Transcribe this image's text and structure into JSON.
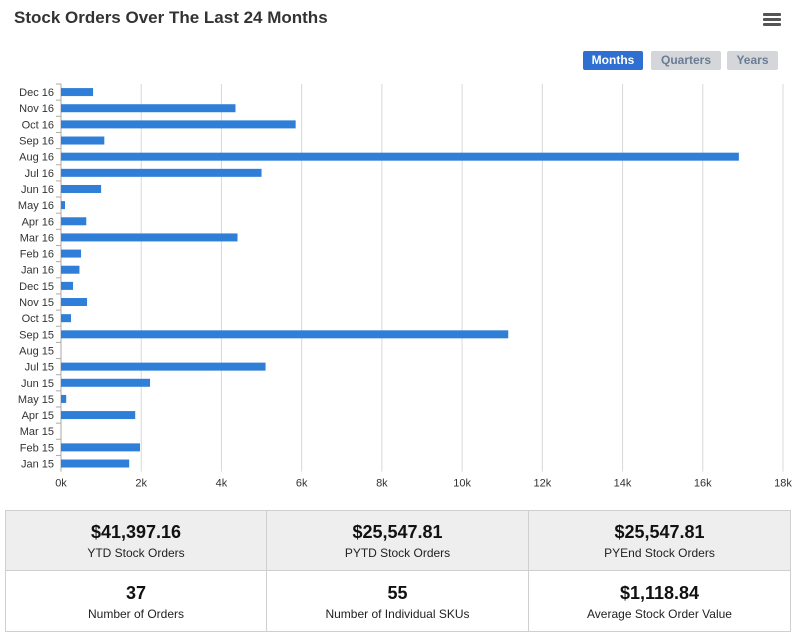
{
  "title": "Stock Orders Over The Last 24 Months",
  "menu_icon": "hamburger-menu-icon",
  "range_buttons": {
    "months": "Months",
    "quarters": "Quarters",
    "years": "Years",
    "active": "Months"
  },
  "colors": {
    "bar": "#2f7ed8",
    "active_button": "#2f6fd0",
    "inactive_button": "#d4d6da",
    "grid": "#d8d8d8"
  },
  "chart_data": {
    "type": "bar",
    "orientation": "horizontal",
    "categories": [
      "Dec 16",
      "Nov 16",
      "Oct 16",
      "Sep 16",
      "Aug 16",
      "Jul 16",
      "Jun 16",
      "May 16",
      "Apr 16",
      "Mar 16",
      "Feb 16",
      "Jan 16",
      "Dec 15",
      "Nov 15",
      "Oct 15",
      "Sep 15",
      "Aug 15",
      "Jul 15",
      "Jun 15",
      "May 15",
      "Apr 15",
      "Mar 15",
      "Feb 15",
      "Jan 15"
    ],
    "values": [
      800,
      4350,
      5850,
      1080,
      16900,
      5000,
      1000,
      100,
      630,
      4400,
      500,
      460,
      300,
      650,
      250,
      11150,
      0,
      5100,
      2220,
      130,
      1850,
      0,
      1970,
      1700
    ],
    "xlim": [
      0,
      18000
    ],
    "ticks": [
      "0k",
      "2k",
      "4k",
      "6k",
      "8k",
      "10k",
      "12k",
      "14k",
      "16k",
      "18k"
    ],
    "tick_values": [
      0,
      2000,
      4000,
      6000,
      8000,
      10000,
      12000,
      14000,
      16000,
      18000
    ],
    "grid": true,
    "legend": false
  },
  "stats": [
    {
      "value": "$41,397.16",
      "label": "YTD Stock Orders"
    },
    {
      "value": "$25,547.81",
      "label": "PYTD Stock Orders"
    },
    {
      "value": "$25,547.81",
      "label": "PYEnd Stock Orders"
    },
    {
      "value": "37",
      "label": "Number of Orders"
    },
    {
      "value": "55",
      "label": "Number of Individual SKUs"
    },
    {
      "value": "$1,118.84",
      "label": "Average Stock Order Value"
    }
  ]
}
